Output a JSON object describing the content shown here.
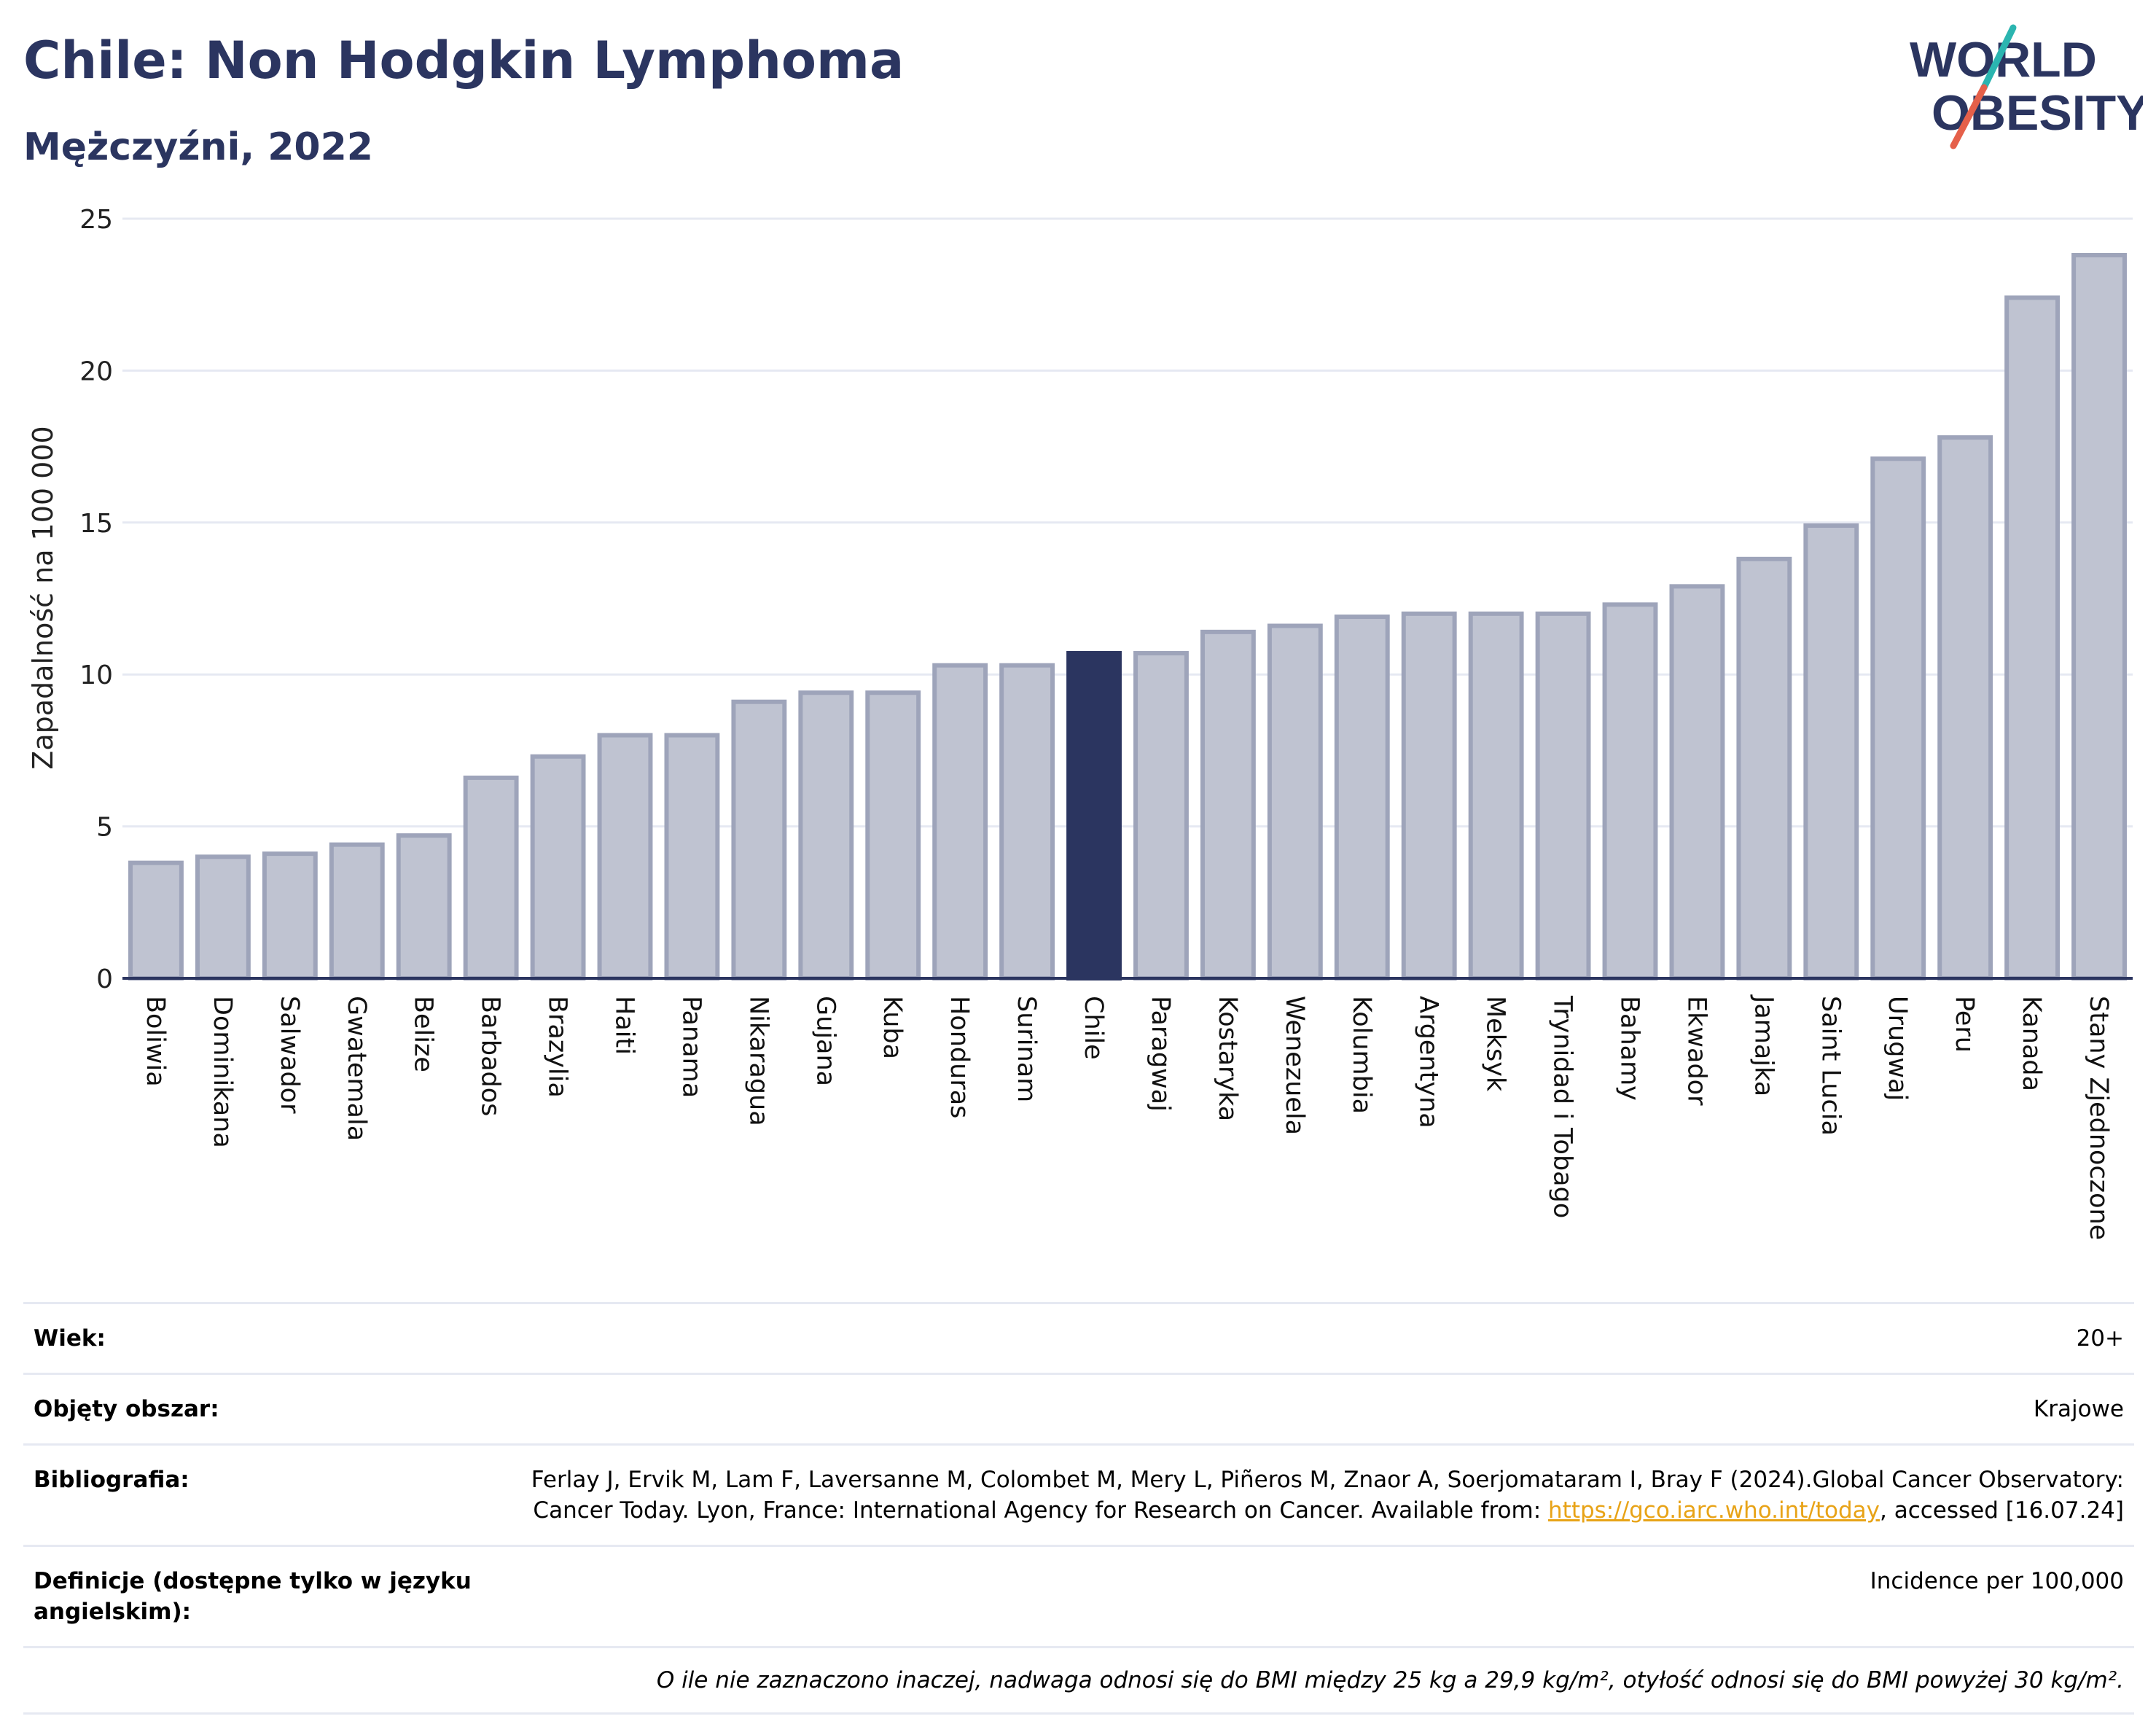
{
  "header": {
    "title": "Chile: Non Hodgkin Lymphoma",
    "subtitle": "Mężczyźni, 2022",
    "logo_line1": "WORLD",
    "logo_line2": "OBESITY"
  },
  "colors": {
    "title": "#2b3560",
    "bar": "#bfc3d1",
    "bar_border": "#9ea4ba",
    "highlight": "#2b3560",
    "logo_slash_teal": "#2bb5b0",
    "logo_slash_red": "#e5604a",
    "link": "#e8a317"
  },
  "chart_data": {
    "type": "bar",
    "ylabel": "Zapadalność na 100 000",
    "xlabel": "",
    "ylim": [
      0,
      25
    ],
    "yticks": [
      0,
      5,
      10,
      15,
      20,
      25
    ],
    "grid": true,
    "highlight": "Chile",
    "categories": [
      "Boliwia",
      "Dominikana",
      "Salwador",
      "Gwatemala",
      "Belize",
      "Barbados",
      "Brazylia",
      "Haiti",
      "Panama",
      "Nikaragua",
      "Gujana",
      "Kuba",
      "Honduras",
      "Surinam",
      "Chile",
      "Paragwaj",
      "Kostaryka",
      "Wenezuela",
      "Kolumbia",
      "Argentyna",
      "Meksyk",
      "Trynidad i Tobago",
      "Bahamy",
      "Ekwador",
      "Jamajka",
      "Saint Lucia",
      "Urugwaj",
      "Peru",
      "Kanada",
      "Stany Zjednoczone"
    ],
    "values": [
      3.8,
      4.0,
      4.1,
      4.4,
      4.7,
      6.6,
      7.3,
      8.0,
      8.0,
      9.1,
      9.4,
      9.4,
      10.3,
      10.3,
      10.7,
      10.7,
      11.4,
      11.6,
      11.9,
      12.0,
      12.0,
      12.0,
      12.3,
      12.9,
      13.8,
      14.9,
      17.1,
      17.8,
      22.4,
      23.8
    ]
  },
  "meta": {
    "age_label": "Wiek:",
    "age_value": "20+",
    "coverage_label": "Objęty obszar:",
    "coverage_value": "Krajowe",
    "bib_label": "Bibliografia:",
    "bib_text_1": "Ferlay J, Ervik M, Lam F, Laversanne M, Colombet M, Mery L, Piñeros M, Znaor A, Soerjomataram I, Bray F (2024).Global Cancer Observatory: Cancer Today. Lyon, France: International Agency for Research on Cancer. Available from: ",
    "bib_link": "https://gco.iarc.who.int/today",
    "bib_text_2": ", accessed [16.07.24]",
    "def_label": "Definicje (dostępne tylko w języku angielskim):",
    "def_value": "Incidence per 100,000",
    "note": "O ile nie zaznaczono inaczej, nadwaga odnosi się do BMI między 25 kg a 29,9 kg/m², otyłość odnosi się do BMI powyżej 30 kg/m²."
  }
}
